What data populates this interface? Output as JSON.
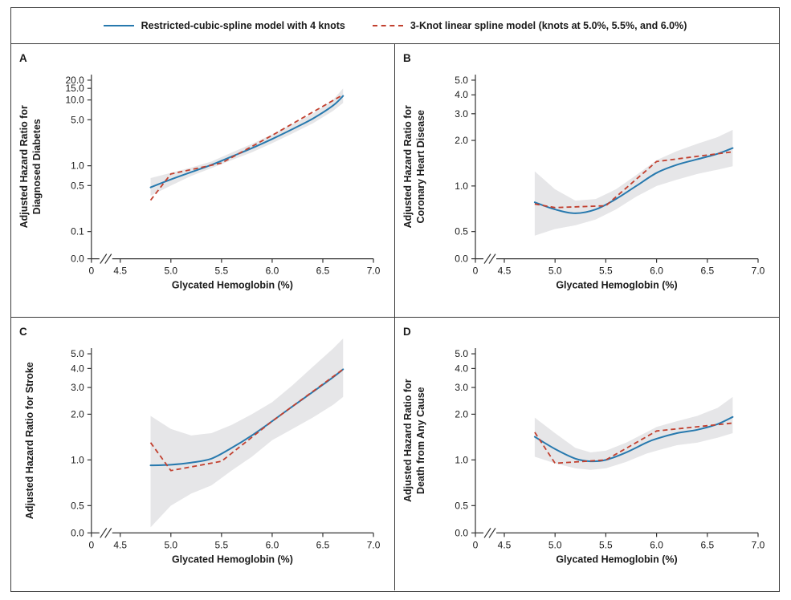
{
  "figure": {
    "legend": [
      {
        "label": "Restricted-cubic-spline model with 4 knots",
        "style": "solid",
        "color": "#2779ae"
      },
      {
        "label": "3-Knot linear spline model (knots at 5.0%, 5.5%, and 6.0%)",
        "style": "dashed",
        "color": "#c2402f"
      }
    ],
    "colors": {
      "rcs_line": "#2779ae",
      "linear_spline_line": "#c2402f",
      "confidence_band": "#e6e6e8",
      "axis": "#333333"
    }
  },
  "chart_data": [
    {
      "panel": "A",
      "type": "line",
      "ylabel_lines": [
        "Adjusted Hazard Ratio for",
        "Diagnosed Diabetes"
      ],
      "xlabel": "Glycated Hemoglobin (%)",
      "y_scale": "log",
      "y_ticks": {
        "values": [
          20,
          15,
          10,
          5,
          1,
          0.5,
          0.1
        ],
        "labels": [
          "20.0",
          "15.0",
          "10.0",
          "5.0",
          "1.0",
          "0.5",
          "0.1"
        ],
        "zero_label": "0.0"
      },
      "x_ticks": {
        "values": [
          4.5,
          5.0,
          5.5,
          6.0,
          6.5,
          7.0
        ],
        "labels": [
          "4.5",
          "5.0",
          "5.5",
          "6.0",
          "6.5",
          "7.0"
        ],
        "zero_label": "0",
        "axis_break": true
      },
      "band": {
        "x": [
          4.8,
          5.0,
          5.2,
          5.4,
          5.6,
          5.8,
          6.0,
          6.2,
          6.4,
          6.6,
          6.7
        ],
        "lower": [
          0.35,
          0.5,
          0.7,
          0.92,
          1.22,
          1.6,
          2.2,
          3.1,
          4.4,
          6.8,
          9.0
        ],
        "upper": [
          0.65,
          0.78,
          0.94,
          1.16,
          1.58,
          2.15,
          3.0,
          4.3,
          6.2,
          10.0,
          15.0
        ]
      },
      "series": [
        {
          "name": "Restricted-cubic-spline model with 4 knots",
          "smooth": true,
          "x": [
            4.8,
            5.0,
            5.2,
            5.4,
            5.6,
            5.8,
            6.0,
            6.2,
            6.4,
            6.6,
            6.7
          ],
          "y": [
            0.47,
            0.62,
            0.8,
            1.03,
            1.38,
            1.85,
            2.55,
            3.6,
            5.2,
            8.2,
            11.5
          ]
        },
        {
          "name": "3-Knot linear spline model",
          "smooth": false,
          "x": [
            4.8,
            5.0,
            5.5,
            6.0,
            6.7
          ],
          "y": [
            0.3,
            0.75,
            1.1,
            2.9,
            12.0
          ]
        }
      ]
    },
    {
      "panel": "B",
      "type": "line",
      "ylabel_lines": [
        "Adjusted Hazard Ratio for",
        "Coronary Heart Disease"
      ],
      "xlabel": "Glycated Hemoglobin (%)",
      "y_scale": "log",
      "y_ticks": {
        "values": [
          5,
          4,
          3,
          2,
          1,
          0.5
        ],
        "labels": [
          "5.0",
          "4.0",
          "3.0",
          "2.0",
          "1.0",
          "0.5"
        ],
        "zero_label": "0.0"
      },
      "x_ticks": {
        "values": [
          4.5,
          5.0,
          5.5,
          6.0,
          6.5,
          7.0
        ],
        "labels": [
          "4.5",
          "5.0",
          "5.5",
          "6.0",
          "6.5",
          "7.0"
        ],
        "zero_label": "0",
        "axis_break": true
      },
      "band": {
        "x": [
          4.8,
          5.0,
          5.2,
          5.4,
          5.6,
          5.8,
          6.0,
          6.2,
          6.4,
          6.6,
          6.75
        ],
        "lower": [
          0.47,
          0.52,
          0.55,
          0.6,
          0.7,
          0.85,
          1.0,
          1.1,
          1.2,
          1.28,
          1.35
        ],
        "upper": [
          1.25,
          0.95,
          0.8,
          0.82,
          0.95,
          1.18,
          1.48,
          1.7,
          1.9,
          2.1,
          2.35
        ]
      },
      "series": [
        {
          "name": "Restricted-cubic-spline model with 4 knots",
          "smooth": true,
          "x": [
            4.8,
            5.0,
            5.2,
            5.4,
            5.6,
            5.8,
            6.0,
            6.2,
            6.4,
            6.6,
            6.75
          ],
          "y": [
            0.78,
            0.7,
            0.66,
            0.7,
            0.82,
            1.0,
            1.22,
            1.38,
            1.5,
            1.63,
            1.78
          ]
        },
        {
          "name": "3-Knot linear spline model",
          "smooth": false,
          "x": [
            4.8,
            5.0,
            5.5,
            6.0,
            6.75
          ],
          "y": [
            0.76,
            0.72,
            0.74,
            1.45,
            1.68
          ]
        }
      ]
    },
    {
      "panel": "C",
      "type": "line",
      "ylabel_lines": [
        "Adjusted Hazard Ratio for Stroke"
      ],
      "xlabel": "Glycated Hemoglobin (%)",
      "y_scale": "log",
      "y_ticks": {
        "values": [
          5,
          4,
          3,
          2,
          1,
          0.5
        ],
        "labels": [
          "5.0",
          "4.0",
          "3.0",
          "2.0",
          "1.0",
          "0.5"
        ],
        "zero_label": "0.0"
      },
      "x_ticks": {
        "values": [
          4.5,
          5.0,
          5.5,
          6.0,
          6.5,
          7.0
        ],
        "labels": [
          "4.5",
          "5.0",
          "5.5",
          "6.0",
          "6.5",
          "7.0"
        ],
        "zero_label": "0",
        "axis_break": true
      },
      "band": {
        "x": [
          4.8,
          5.0,
          5.2,
          5.4,
          5.6,
          5.8,
          6.0,
          6.2,
          6.4,
          6.6,
          6.7
        ],
        "lower": [
          0.36,
          0.5,
          0.6,
          0.68,
          0.85,
          1.05,
          1.35,
          1.6,
          1.9,
          2.3,
          2.6
        ],
        "upper": [
          1.95,
          1.6,
          1.45,
          1.5,
          1.7,
          2.0,
          2.4,
          3.1,
          4.1,
          5.4,
          6.3
        ]
      },
      "series": [
        {
          "name": "Restricted-cubic-spline model with 4 knots",
          "smooth": true,
          "x": [
            4.8,
            5.0,
            5.2,
            5.4,
            5.6,
            5.8,
            6.0,
            6.2,
            6.4,
            6.6,
            6.7
          ],
          "y": [
            0.92,
            0.93,
            0.96,
            1.02,
            1.2,
            1.45,
            1.8,
            2.25,
            2.8,
            3.5,
            3.95
          ]
        },
        {
          "name": "3-Knot linear spline model",
          "smooth": false,
          "x": [
            4.8,
            5.0,
            5.5,
            6.0,
            6.7
          ],
          "y": [
            1.3,
            0.85,
            0.98,
            1.8,
            3.95
          ]
        }
      ]
    },
    {
      "panel": "D",
      "type": "line",
      "ylabel_lines": [
        "Adjusted Hazard Ratio for",
        "Death from Any Cause"
      ],
      "xlabel": "Glycated Hemoglobin (%)",
      "y_scale": "log",
      "y_ticks": {
        "values": [
          5,
          4,
          3,
          2,
          1,
          0.5
        ],
        "labels": [
          "5.0",
          "4.0",
          "3.0",
          "2.0",
          "1.0",
          "0.5"
        ],
        "zero_label": "0.0"
      },
      "x_ticks": {
        "values": [
          4.5,
          5.0,
          5.5,
          6.0,
          6.5,
          7.0
        ],
        "labels": [
          "4.5",
          "5.0",
          "5.5",
          "6.0",
          "6.5",
          "7.0"
        ],
        "zero_label": "0",
        "axis_break": true
      },
      "band": {
        "x": [
          4.8,
          5.0,
          5.2,
          5.35,
          5.5,
          5.7,
          5.9,
          6.0,
          6.2,
          6.4,
          6.6,
          6.75
        ],
        "lower": [
          1.05,
          0.95,
          0.88,
          0.86,
          0.88,
          0.97,
          1.1,
          1.15,
          1.25,
          1.3,
          1.4,
          1.5
        ],
        "upper": [
          1.9,
          1.5,
          1.2,
          1.12,
          1.15,
          1.3,
          1.52,
          1.65,
          1.8,
          1.95,
          2.2,
          2.6
        ]
      },
      "series": [
        {
          "name": "Restricted-cubic-spline model with 4 knots",
          "smooth": true,
          "x": [
            4.8,
            5.0,
            5.2,
            5.35,
            5.5,
            5.7,
            5.9,
            6.0,
            6.2,
            6.4,
            6.6,
            6.75
          ],
          "y": [
            1.42,
            1.18,
            1.02,
            0.98,
            1.0,
            1.12,
            1.3,
            1.38,
            1.5,
            1.58,
            1.72,
            1.92
          ]
        },
        {
          "name": "3-Knot linear spline model",
          "smooth": false,
          "x": [
            4.8,
            5.0,
            5.5,
            6.0,
            6.75
          ],
          "y": [
            1.52,
            0.95,
            1.0,
            1.55,
            1.75
          ]
        }
      ]
    }
  ]
}
